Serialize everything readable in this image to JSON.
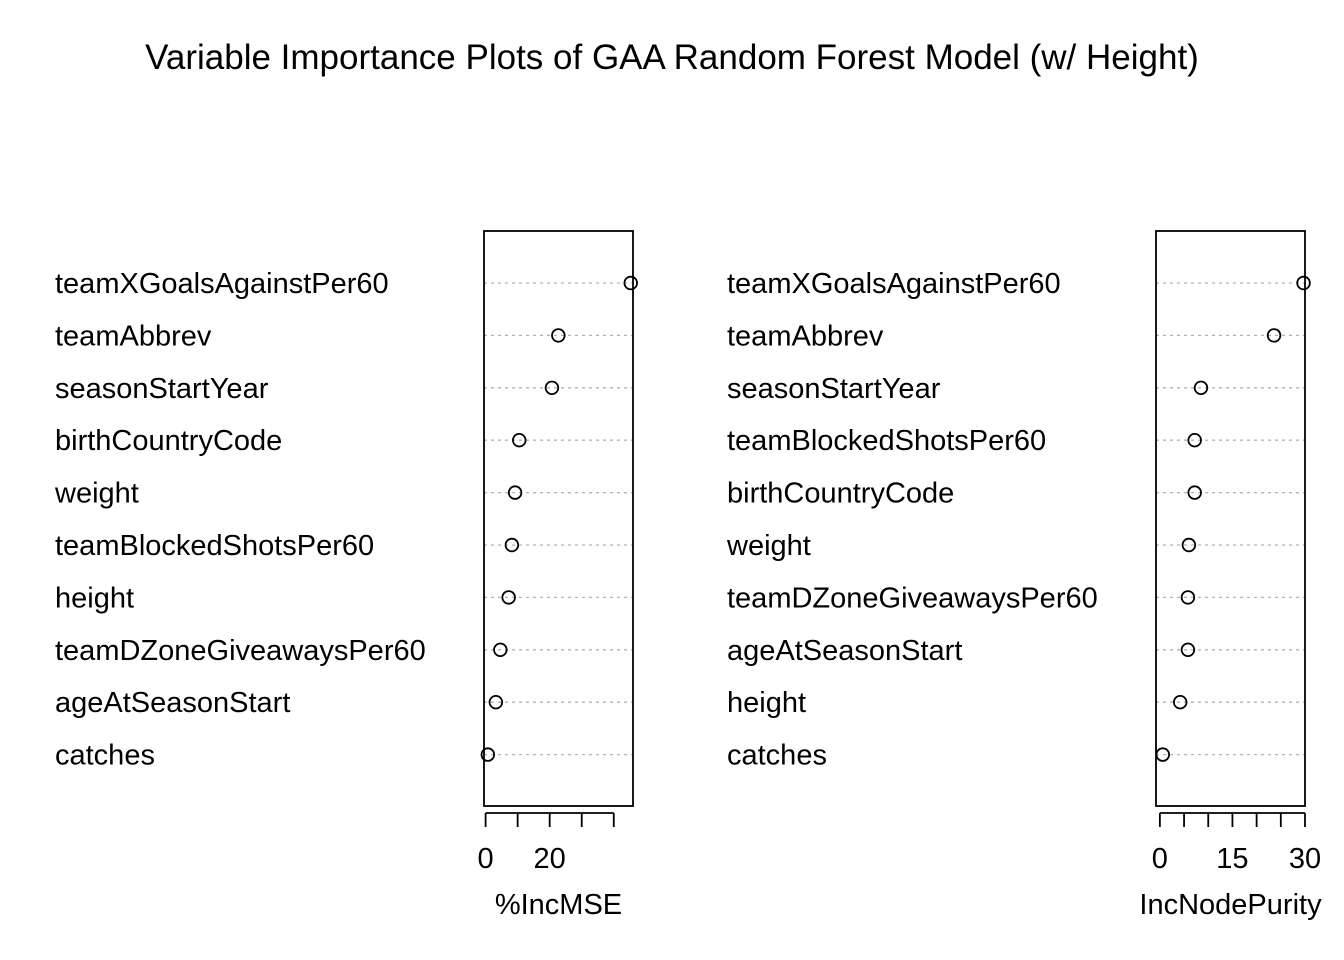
{
  "chart_data": {
    "title": "Variable Importance Plots of GAA Random Forest Model (w/ Height)",
    "panels": [
      {
        "type": "scatter",
        "xlabel": "%IncMSE",
        "xlim": [
          -0.5,
          46
        ],
        "xticks": [
          0,
          10,
          20,
          30,
          40
        ],
        "xtick_labels": [
          "0",
          "",
          "20",
          "",
          ""
        ],
        "grid": "dotted horizontal",
        "variables": [
          {
            "name": "teamXGoalsAgainstPer60",
            "value": 45.3
          },
          {
            "name": "teamAbbrev",
            "value": 22.7
          },
          {
            "name": "seasonStartYear",
            "value": 20.7
          },
          {
            "name": "birthCountryCode",
            "value": 10.5
          },
          {
            "name": "weight",
            "value": 9.2
          },
          {
            "name": "teamBlockedShotsPer60",
            "value": 8.2
          },
          {
            "name": "height",
            "value": 7.2
          },
          {
            "name": "teamDZoneGiveawaysPer60",
            "value": 4.6
          },
          {
            "name": "ageAtSeasonStart",
            "value": 3.2
          },
          {
            "name": "catches",
            "value": 0.7
          }
        ]
      },
      {
        "type": "scatter",
        "xlabel": "IncNodePurity",
        "xlim": [
          -0.8,
          30
        ],
        "xticks": [
          0,
          5,
          10,
          15,
          20,
          25,
          30
        ],
        "xtick_labels": [
          "0",
          "",
          "",
          "15",
          "",
          "",
          "30"
        ],
        "grid": "dotted horizontal",
        "variables": [
          {
            "name": "teamXGoalsAgainstPer60",
            "value": 29.7
          },
          {
            "name": "teamAbbrev",
            "value": 23.6
          },
          {
            "name": "seasonStartYear",
            "value": 8.5
          },
          {
            "name": "teamBlockedShotsPer60",
            "value": 7.2
          },
          {
            "name": "birthCountryCode",
            "value": 7.2
          },
          {
            "name": "weight",
            "value": 6.0
          },
          {
            "name": "teamDZoneGiveawaysPer60",
            "value": 5.8
          },
          {
            "name": "ageAtSeasonStart",
            "value": 5.8
          },
          {
            "name": "height",
            "value": 4.2
          },
          {
            "name": "catches",
            "value": 0.6
          }
        ]
      }
    ]
  }
}
